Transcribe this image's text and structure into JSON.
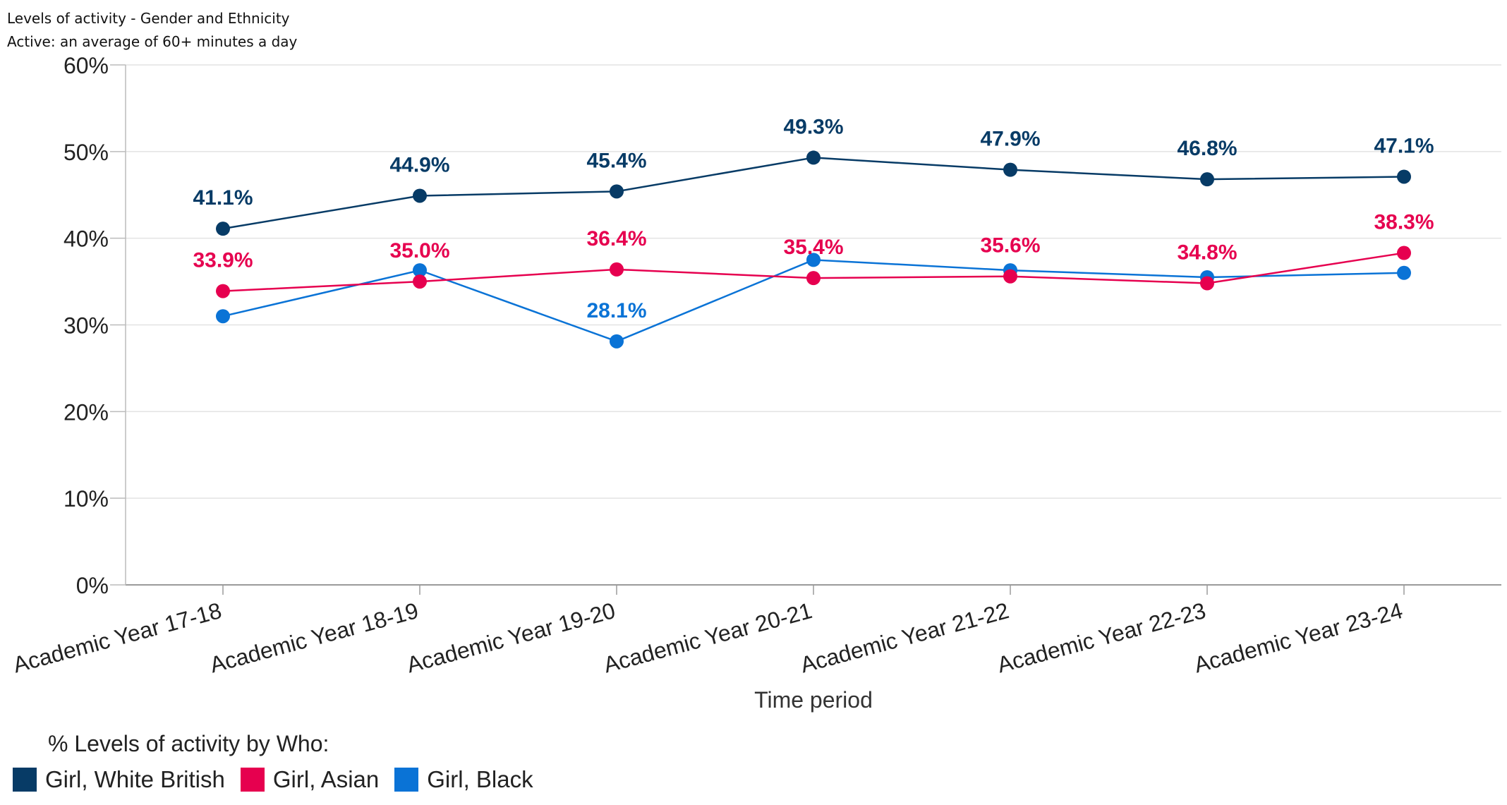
{
  "title": "Levels of activity - Gender and Ethnicity",
  "subtitle": "Active: an average of 60+ minutes a day",
  "chart_data": {
    "type": "line",
    "title": "Levels of activity - Gender and Ethnicity",
    "subtitle": "Active: an average of 60+ minutes a day",
    "xlabel": "Time period",
    "ylabel": "",
    "ylim": [
      0,
      60
    ],
    "yticks": [
      "0%",
      "10%",
      "20%",
      "30%",
      "40%",
      "50%",
      "60%"
    ],
    "grid": true,
    "legend_title": "% Levels of activity by Who:",
    "legend_position": "bottom-left",
    "categories": [
      "Academic Year 17-18",
      "Academic Year 18-19",
      "Academic Year 19-20",
      "Academic Year 20-21",
      "Academic Year 21-22",
      "Academic Year 22-23",
      "Academic Year 23-24"
    ],
    "series": [
      {
        "name": "Girl, White British",
        "color": "#073b66",
        "values": [
          41.1,
          44.9,
          45.4,
          49.3,
          47.9,
          46.8,
          47.1
        ],
        "labels": [
          "41.1%",
          "44.9%",
          "45.4%",
          "49.3%",
          "47.9%",
          "46.8%",
          "47.1%"
        ]
      },
      {
        "name": "Girl, Asian",
        "color": "#e6004f",
        "values": [
          33.9,
          35.0,
          36.4,
          35.4,
          35.6,
          34.8,
          38.3
        ],
        "labels": [
          "33.9%",
          "35.0%",
          "36.4%",
          "35.4%",
          "35.6%",
          "34.8%",
          "38.3%"
        ]
      },
      {
        "name": "Girl, Black",
        "color": "#0a73d6",
        "values": [
          31.0,
          36.3,
          28.1,
          37.5,
          36.3,
          35.5,
          36.0
        ],
        "labels": [
          "",
          "",
          "28.1%",
          "",
          "",
          "",
          ""
        ]
      }
    ]
  }
}
